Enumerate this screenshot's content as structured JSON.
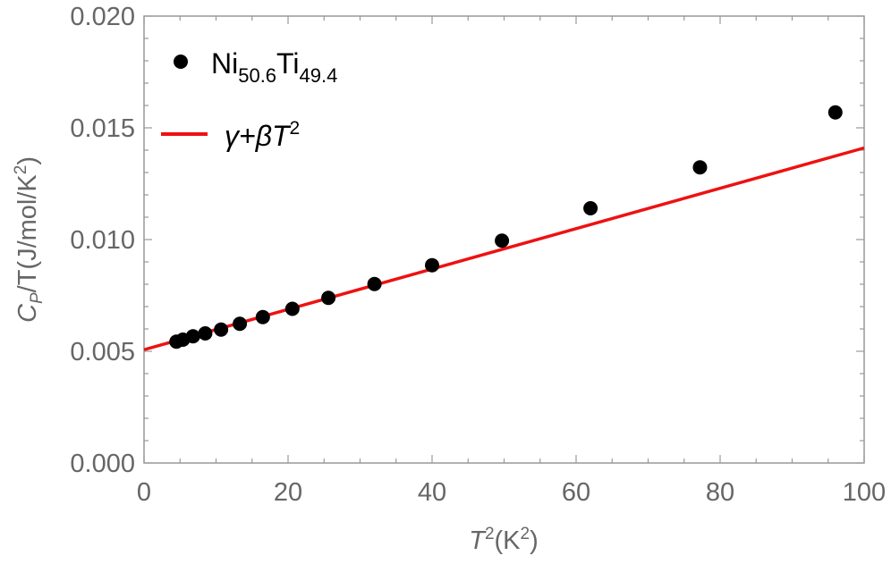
{
  "chart_data": {
    "type": "scatter",
    "x_ticks": [
      "0",
      "20",
      "40",
      "60",
      "80",
      "100"
    ],
    "y_ticks": [
      "0.000",
      "0.005",
      "0.010",
      "0.015",
      "0.020"
    ],
    "xlim": [
      0,
      100
    ],
    "ylim": [
      0,
      0.02
    ],
    "xlabel": {
      "main": "T",
      "sup": "2",
      "paren_open": "(K",
      "paren_sup": "2",
      "paren_close": ")"
    },
    "ylabel": {
      "main": "C",
      "sub": "P",
      "rest": "/T(J/mol/K",
      "sup": "2",
      "close": ")"
    },
    "series": [
      {
        "name": {
          "el1": "Ni",
          "sub1": "50.6",
          "el2": "Ti",
          "sub2": "49.4"
        },
        "kind": "scatter",
        "color": "#000000",
        "points": [
          [
            4.5,
            0.00543
          ],
          [
            5.4,
            0.00552
          ],
          [
            6.8,
            0.00567
          ],
          [
            8.5,
            0.0058
          ],
          [
            10.7,
            0.00597
          ],
          [
            13.3,
            0.00623
          ],
          [
            16.5,
            0.00653
          ],
          [
            20.6,
            0.0069
          ],
          [
            25.6,
            0.00739
          ],
          [
            32.0,
            0.00801
          ],
          [
            40.0,
            0.00885
          ],
          [
            49.7,
            0.00995
          ],
          [
            62.0,
            0.0114
          ],
          [
            77.2,
            0.01323
          ],
          [
            96.0,
            0.01569
          ]
        ]
      },
      {
        "name": {
          "text": "γ+βT",
          "sup": "2"
        },
        "kind": "line",
        "color": "#ee1111",
        "points": [
          [
            0,
            0.00507
          ],
          [
            100,
            0.0141
          ]
        ]
      }
    ]
  }
}
